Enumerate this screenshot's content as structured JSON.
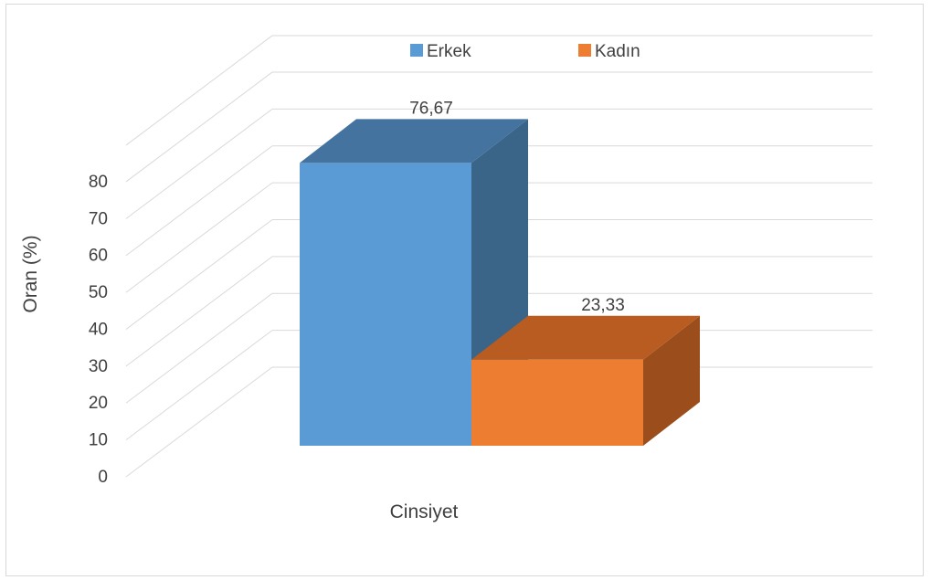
{
  "chart_data": {
    "type": "bar",
    "categories": [
      "Cinsiyet"
    ],
    "series": [
      {
        "name": "Erkek",
        "values": [
          76.67
        ],
        "label": "76,67",
        "color": "#5b9bd5",
        "top_color": "#44739f",
        "side_color": "#3b6489"
      },
      {
        "name": "Kadın",
        "values": [
          23.33
        ],
        "label": "23,33",
        "color": "#ed7d31",
        "top_color": "#b85c22",
        "side_color": "#9b4e1c"
      }
    ],
    "xlabel": "Cinsiyet",
    "ylabel": "Oran (%)",
    "ylim": [
      0,
      80
    ],
    "yticks": [
      "0",
      "10",
      "20",
      "30",
      "40",
      "50",
      "60",
      "70",
      "80"
    ],
    "grid": true,
    "legend_position": "top",
    "style": "3d-column"
  }
}
